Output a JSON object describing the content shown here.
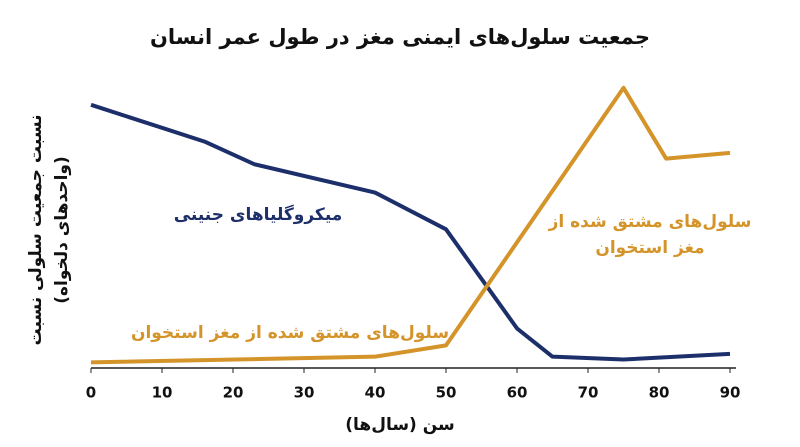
{
  "chart_data": {
    "type": "line",
    "title": "جمعیت سلول‌های ایمنی مغز در طول عمر انسان",
    "x_label": "سن (سال‌ها)",
    "y_label": [
      "نسبت جمعیت سلولی نسبت",
      "(واحدهای دلخواه)"
    ],
    "xlim": [
      0,
      90
    ],
    "xticks": [
      0,
      10,
      20,
      30,
      40,
      50,
      60,
      70,
      80,
      90
    ],
    "ylim": [
      0,
      100
    ],
    "series": [
      {
        "name": "میکروگلیاهای جنینی",
        "color": "#1d2f6b",
        "x": [
          0,
          16,
          23,
          40,
          50,
          60,
          65,
          75,
          90
        ],
        "values": [
          93,
          80,
          72,
          62,
          49,
          14,
          4,
          3,
          5
        ]
      },
      {
        "name": "سلول‌های مشتق شده از مغز استخوان",
        "color": "#d4942a",
        "x": [
          0,
          40,
          50,
          75,
          81,
          90
        ],
        "values": [
          2,
          4,
          8,
          99,
          74,
          76
        ]
      }
    ],
    "annotations": [
      {
        "text": "سلول‌های مشتق شده از",
        "color": "#d4942a"
      },
      {
        "text": "مغز استخوان",
        "color": "#d4942a"
      }
    ]
  }
}
